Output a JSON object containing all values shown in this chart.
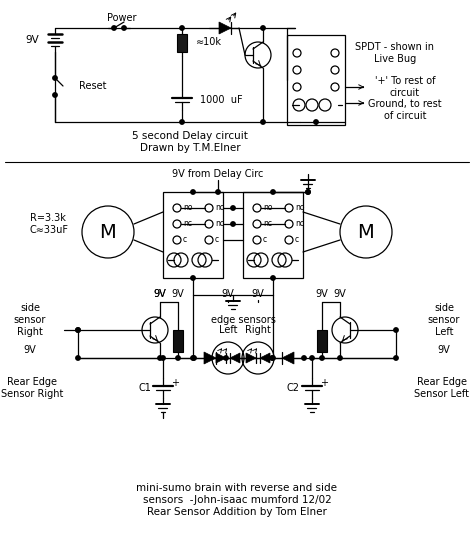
{
  "background_color": "#ffffff",
  "line_color": "#000000",
  "title_text": "mini-sumo brain with reverse and side\nsensors  -John-isaac mumford 12/02\nRear Sensor Addition by Tom Elner",
  "delay_label": "5 second Delay circuit\nDrawn by T.M.Elner",
  "spdt_label": "SPDT - shown in\nLive Bug",
  "plus_label": "'+' To rest of\ncircuit",
  "ground_label": "Ground, to rest\nof circuit",
  "power_label": "Power",
  "reset_label": "Reset",
  "r_label": "R=3.3k",
  "c_label": "C≈33uF",
  "nine_v_delay": "9V from Delay Circ",
  "resistor_label": "≈10k",
  "cap_label": "1000  uF",
  "edge_label": "edge sensors",
  "left_label": "Left",
  "right_label": "Right",
  "fig_width": 4.74,
  "fig_height": 5.42,
  "dpi": 100
}
